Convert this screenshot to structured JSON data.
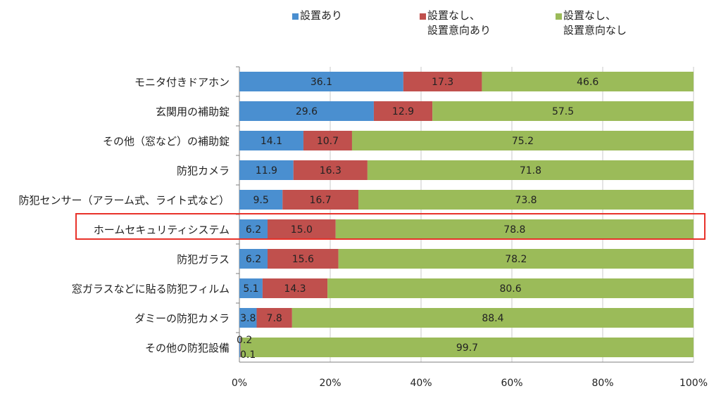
{
  "chart_data": {
    "type": "bar",
    "orientation": "horizontal",
    "stacked": "percent",
    "title": "",
    "xlabel": "",
    "ylabel": "",
    "xlim": [
      0,
      100
    ],
    "xticks": [
      "0%",
      "20%",
      "40%",
      "60%",
      "80%",
      "100%"
    ],
    "grid": true,
    "legend_position": "top",
    "categories": [
      "モニタ付きドアホン",
      "玄関用の補助錠",
      "その他（窓など）の補助錠",
      "防犯カメラ",
      "防犯センサー（アラーム式、ライト式など）",
      "ホームセキュリティシステム",
      "防犯ガラス",
      "窓ガラスなどに貼る防犯フィルム",
      "ダミーの防犯カメラ",
      "その他の防犯設備"
    ],
    "series": [
      {
        "name": "設置あり",
        "color": "#4a8fd0",
        "values": [
          36.1,
          29.6,
          14.1,
          11.9,
          9.5,
          6.2,
          6.2,
          5.1,
          3.8,
          0.2
        ],
        "labels": [
          "36.1",
          "29.6",
          "14.1",
          "11.9",
          "9.5",
          "6.2",
          "6.2",
          "5.1",
          "3.8",
          "0.2"
        ]
      },
      {
        "name": "設置なし、\n設置意向あり",
        "color": "#c0504d",
        "values": [
          17.3,
          12.9,
          10.7,
          16.3,
          16.7,
          15.0,
          15.6,
          14.3,
          7.8,
          0.1
        ],
        "labels": [
          "17.3",
          "12.9",
          "10.7",
          "16.3",
          "16.7",
          "15.0",
          "15.6",
          "14.3",
          "7.8",
          "0.1"
        ]
      },
      {
        "name": "設置なし、\n設置意向なし",
        "color": "#9bbb59",
        "values": [
          46.6,
          57.5,
          75.2,
          71.8,
          73.8,
          78.8,
          78.2,
          80.6,
          88.4,
          99.7
        ],
        "labels": [
          "46.6",
          "57.5",
          "75.2",
          "71.8",
          "73.8",
          "78.8",
          "78.2",
          "80.6",
          "88.4",
          "99.7"
        ]
      }
    ],
    "highlighted_category": "ホームセキュリティシステム",
    "highlight_color": "#e8322a"
  }
}
